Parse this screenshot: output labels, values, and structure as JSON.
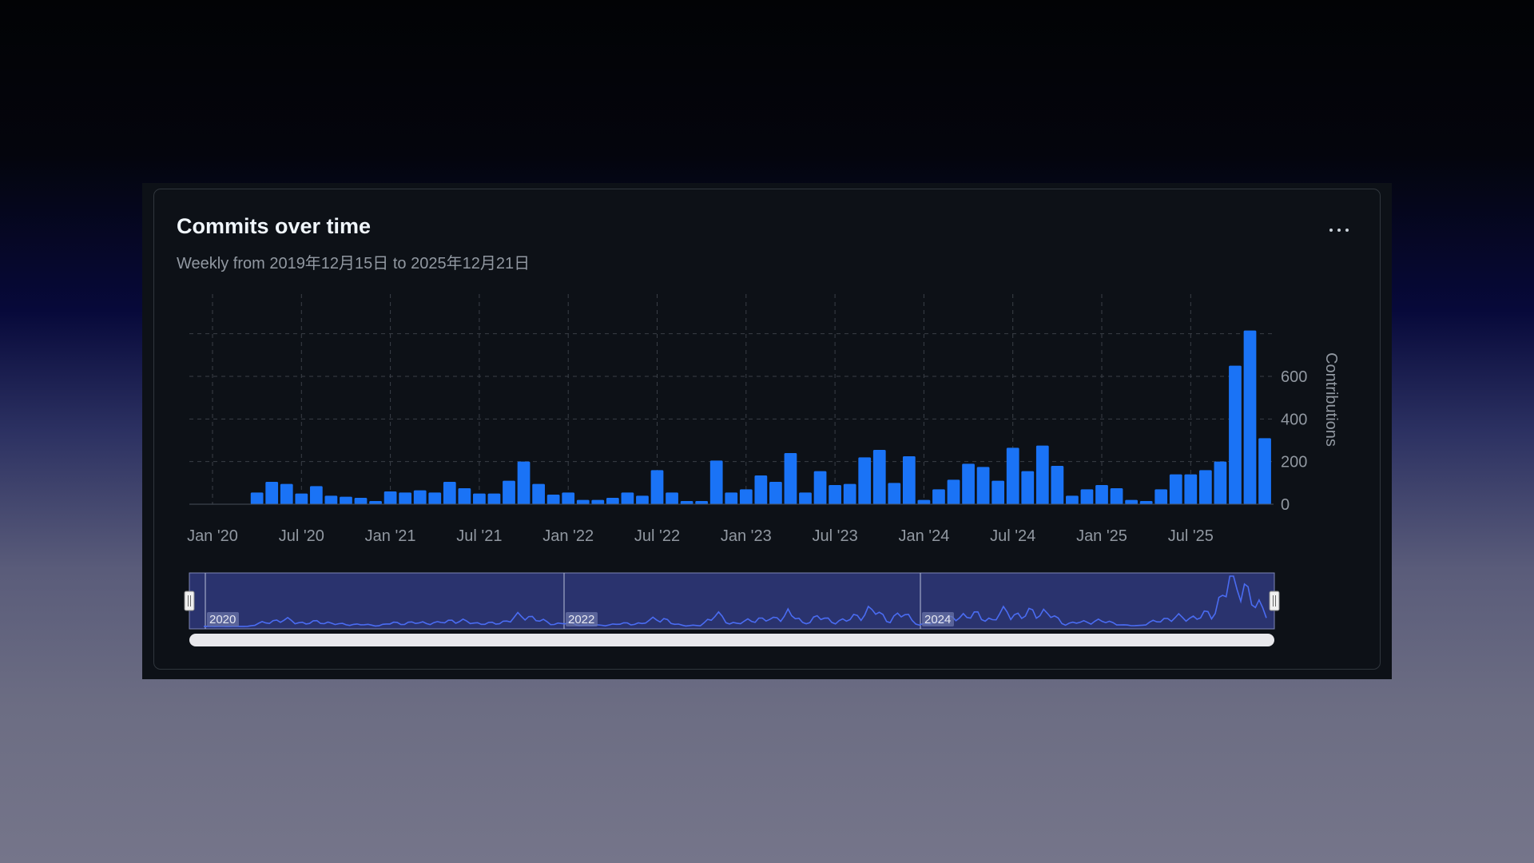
{
  "card": {
    "title": "Commits over time",
    "subtitle": "Weekly from 2019年12月15日 to 2025年12月21日",
    "menu_icon": "kebab-horizontal-icon"
  },
  "colors": {
    "bar": "#1f6feb",
    "bar_bright": "#1a73f6",
    "navigator_fill": "#2a336e",
    "navigator_line": "#3d63e6",
    "grid": "#3a3f47",
    "axis_text": "#9198a1"
  },
  "chart_data": {
    "type": "bar",
    "title": "Commits over time",
    "subtitle": "Weekly from 2019年12月15日 to 2025年12月21日",
    "ylabel": "Contributions",
    "xlabel": "",
    "ylim": [
      0,
      800
    ],
    "yticks": [
      0,
      200,
      400,
      600
    ],
    "grid": true,
    "y_axis_position": "right",
    "x_tick_labels": [
      "Jan '20",
      "Jul '20",
      "Jan '21",
      "Jul '21",
      "Jan '22",
      "Jul '22",
      "Jan '23",
      "Jul '23",
      "Jan '24",
      "Jul '24",
      "Jan '25",
      "Jul '25"
    ],
    "bin": "monthly",
    "start_month": "2019-12",
    "values": [
      2,
      2,
      2,
      2,
      55,
      105,
      95,
      50,
      85,
      40,
      35,
      30,
      15,
      60,
      55,
      65,
      55,
      105,
      75,
      50,
      50,
      110,
      200,
      95,
      45,
      55,
      20,
      20,
      30,
      55,
      40,
      160,
      55,
      15,
      15,
      205,
      55,
      70,
      135,
      105,
      240,
      55,
      155,
      90,
      95,
      220,
      255,
      100,
      225,
      20,
      70,
      115,
      190,
      175,
      110,
      265,
      155,
      275,
      180,
      40,
      70,
      90,
      75,
      20,
      15,
      70,
      140,
      140,
      160,
      200,
      650,
      815,
      310
    ],
    "navigator": {
      "year_labels": [
        "2020",
        "2022",
        "2024"
      ],
      "range_start": "2019-12",
      "range_end": "2025-12"
    }
  }
}
